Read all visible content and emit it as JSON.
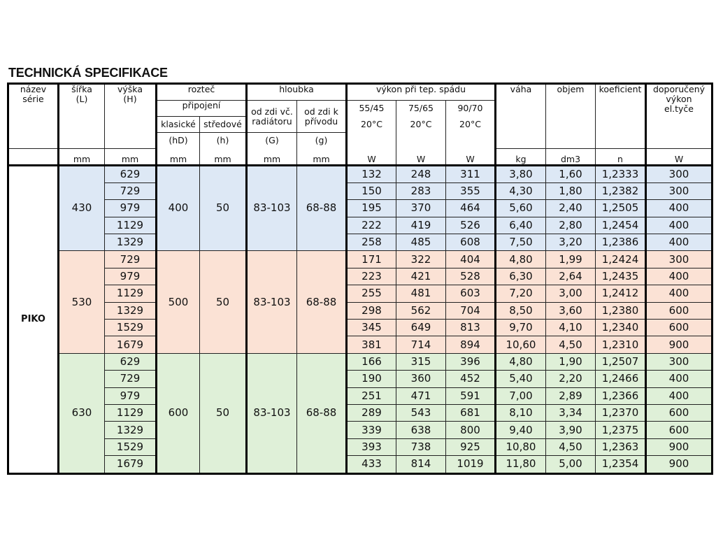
{
  "title": "TECHNICKÁ SPECIFIKACE",
  "header": {
    "nazev": [
      "název",
      "série"
    ],
    "sirka": [
      "šířka",
      "(L)"
    ],
    "vyska": [
      "výška",
      "(H)"
    ],
    "roztec": "rozteč",
    "pripojeni": "připojení",
    "klasicke": "klasické",
    "stredove": "středové",
    "hD": "(hD)",
    "h": "(h)",
    "hloubka": "hloubka",
    "odzdi_vc": "od zdi  vč.",
    "radiatoru": "radiátoru",
    "odzdi_k": "od zdi  k",
    "privodu": "přívodu",
    "G": "(G)",
    "g": "(g)",
    "vykon": "výkon při tep.  spádu",
    "t1": "55/45",
    "t2": "75/65",
    "t3": "90/70",
    "temp": "20°C",
    "vaha": "váha",
    "objem": "objem",
    "koeficient": "koeficient",
    "doporuceny": [
      "doporučený",
      "výkon",
      "el.tyče"
    ],
    "units": [
      "",
      "mm",
      "mm",
      "mm",
      "mm",
      "mm",
      "mm",
      "W",
      "W",
      "W",
      "kg",
      "dm3",
      "n",
      "W"
    ]
  },
  "series": "PIKO",
  "colors": {
    "group_430": "#dde8f5",
    "group_530": "#fbe2d5",
    "group_630": "#dff0d8"
  },
  "groups": [
    {
      "sirka": "430",
      "hD": "400",
      "h": "50",
      "G": "83-103",
      "g": "68-88",
      "rows": [
        [
          "629",
          "132",
          "248",
          "311",
          "3,80",
          "1,60",
          "1,2333",
          "300"
        ],
        [
          "729",
          "150",
          "283",
          "355",
          "4,30",
          "1,80",
          "1,2382",
          "300"
        ],
        [
          "979",
          "195",
          "370",
          "464",
          "5,60",
          "2,40",
          "1,2505",
          "400"
        ],
        [
          "1129",
          "222",
          "419",
          "526",
          "6,40",
          "2,80",
          "1,2454",
          "400"
        ],
        [
          "1329",
          "258",
          "485",
          "608",
          "7,50",
          "3,20",
          "1,2386",
          "400"
        ]
      ]
    },
    {
      "sirka": "530",
      "hD": "500",
      "h": "50",
      "G": "83-103",
      "g": "68-88",
      "rows": [
        [
          "729",
          "171",
          "322",
          "404",
          "4,80",
          "1,99",
          "1,2424",
          "300"
        ],
        [
          "979",
          "223",
          "421",
          "528",
          "6,30",
          "2,64",
          "1,2435",
          "400"
        ],
        [
          "1129",
          "255",
          "481",
          "603",
          "7,20",
          "3,00",
          "1,2412",
          "400"
        ],
        [
          "1329",
          "298",
          "562",
          "704",
          "8,50",
          "3,60",
          "1,2380",
          "600"
        ],
        [
          "1529",
          "345",
          "649",
          "813",
          "9,70",
          "4,10",
          "1,2340",
          "600"
        ],
        [
          "1679",
          "381",
          "714",
          "894",
          "10,60",
          "4,50",
          "1,2310",
          "900"
        ]
      ]
    },
    {
      "sirka": "630",
      "hD": "600",
      "h": "50",
      "G": "83-103",
      "g": "68-88",
      "rows": [
        [
          "629",
          "166",
          "315",
          "396",
          "4,80",
          "1,90",
          "1,2507",
          "300"
        ],
        [
          "729",
          "190",
          "360",
          "452",
          "5,40",
          "2,20",
          "1,2466",
          "400"
        ],
        [
          "979",
          "251",
          "471",
          "591",
          "7,00",
          "2,89",
          "1,2366",
          "400"
        ],
        [
          "1129",
          "289",
          "543",
          "681",
          "8,10",
          "3,34",
          "1,2370",
          "600"
        ],
        [
          "1329",
          "339",
          "638",
          "800",
          "9,40",
          "3,90",
          "1,2375",
          "600"
        ],
        [
          "1529",
          "393",
          "738",
          "925",
          "10,80",
          "4,50",
          "1,2363",
          "900"
        ],
        [
          "1679",
          "433",
          "814",
          "1019",
          "11,80",
          "5,00",
          "1,2354",
          "900"
        ]
      ]
    }
  ]
}
